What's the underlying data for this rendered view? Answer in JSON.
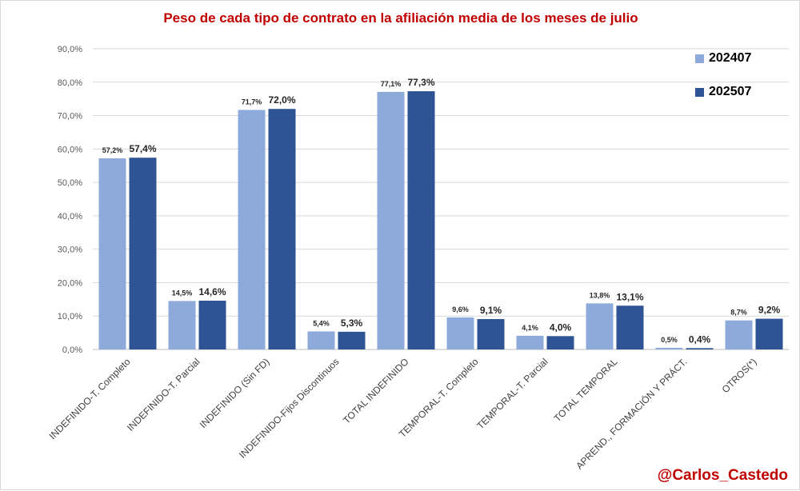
{
  "chart_data": {
    "type": "bar",
    "title": "Peso de cada tipo de contrato en la afiliación media de los meses de julio",
    "xlabel": "",
    "ylabel": "",
    "ylim": [
      0,
      90
    ],
    "y_ticks": [
      "0,0%",
      "10,0%",
      "20,0%",
      "30,0%",
      "40,0%",
      "50,0%",
      "60,0%",
      "70,0%",
      "80,0%",
      "90,0%"
    ],
    "grid": true,
    "legend_position": "top-right",
    "categories": [
      "INDEFINIDO-T. Completo",
      "INDEFINIDO-T. Parcial",
      "INDEFINIDO (Sin FD)",
      "INDEFINIDO-Fijos Discontinuos",
      "TOTAL INDEFINIDO",
      "TEMPORAL-T. Completo",
      "TEMPORAL-T. Parcial",
      "TOTAL TEMPORAL",
      "APREND., FORMACIÓN Y PRÁCT.",
      "OTROS(*)"
    ],
    "series": [
      {
        "name": "202407",
        "color": "#8eaadb",
        "values": [
          57.2,
          14.5,
          71.7,
          5.4,
          77.1,
          9.6,
          4.1,
          13.8,
          0.5,
          8.7
        ],
        "labels": [
          "57,2%",
          "14,5%",
          "71,7%",
          "5,4%",
          "77,1%",
          "9,6%",
          "4,1%",
          "13,8%",
          "0,5%",
          "8,7%"
        ]
      },
      {
        "name": "202507",
        "color": "#2f5496",
        "values": [
          57.4,
          14.6,
          72.0,
          5.3,
          77.3,
          9.1,
          4.0,
          13.1,
          0.4,
          9.2
        ],
        "labels": [
          "57,4%",
          "14,6%",
          "72,0%",
          "5,3%",
          "77,3%",
          "9,1%",
          "4,0%",
          "13,1%",
          "0,4%",
          "9,2%"
        ]
      }
    ]
  },
  "watermark": "@Carlos_Castedo"
}
